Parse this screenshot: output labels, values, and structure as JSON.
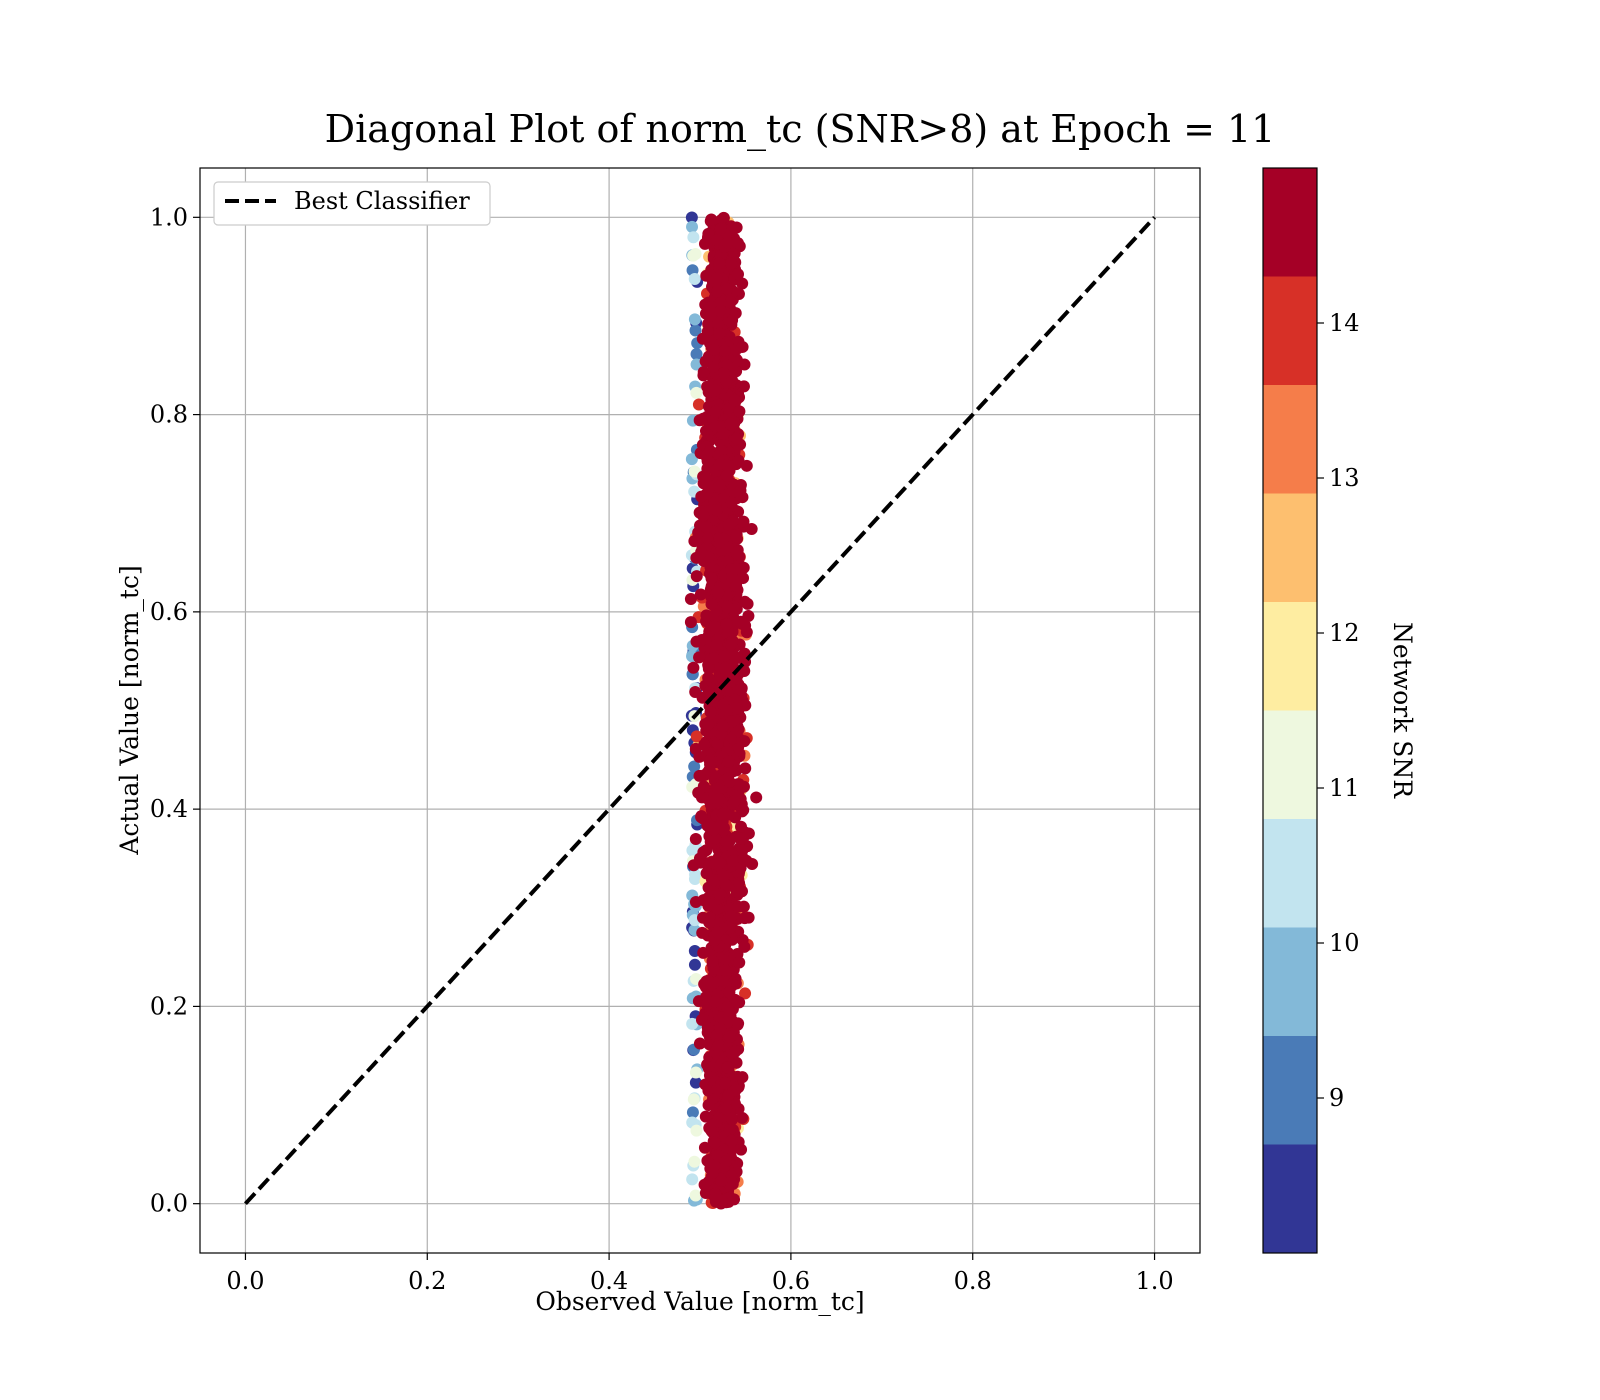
{
  "chart_data": {
    "type": "scatter",
    "title": "Diagonal Plot of norm_tc (SNR>8) at Epoch = 11",
    "xlabel": "Observed Value [norm_tc]",
    "ylabel": "Actual Value [norm_tc]",
    "xlim": [
      -0.05,
      1.05
    ],
    "ylim": [
      -0.05,
      1.05
    ],
    "xticks": [
      0.0,
      0.2,
      0.4,
      0.6,
      0.8,
      1.0
    ],
    "yticks": [
      0.0,
      0.2,
      0.4,
      0.6,
      0.8,
      1.0
    ],
    "xtick_labels": [
      "0.0",
      "0.2",
      "0.4",
      "0.6",
      "0.8",
      "1.0"
    ],
    "ytick_labels": [
      "0.0",
      "0.2",
      "0.4",
      "0.6",
      "0.8",
      "1.0"
    ],
    "grid": true,
    "legend": {
      "placement": "upper-left",
      "entries": [
        {
          "label": "Best Classifier",
          "style": "dashed",
          "color": "#000000"
        }
      ]
    },
    "reference_line": {
      "name": "Best Classifier",
      "x": [
        0.0,
        1.0
      ],
      "y": [
        0.0,
        1.0
      ],
      "style": "dashed",
      "color": "#000000"
    },
    "scatter_summary": {
      "description_of_cloud": "vertical band of points",
      "x_center": 0.525,
      "x_min": 0.49,
      "x_max": 0.59,
      "y_min": 0.0,
      "y_max": 1.0,
      "dominant_snr_range": [
        14.5,
        15.0
      ]
    },
    "colorbar": {
      "label": "Network SNR",
      "range": [
        8.0,
        15.0
      ],
      "ticks": [
        9,
        10,
        11,
        12,
        13,
        14
      ],
      "tick_labels": [
        "9",
        "10",
        "11",
        "12",
        "13",
        "14"
      ],
      "bins": [
        {
          "from": 8.0,
          "to": 8.7,
          "color": "#313695"
        },
        {
          "from": 8.7,
          "to": 9.4,
          "color": "#4a7bb7"
        },
        {
          "from": 9.4,
          "to": 10.1,
          "color": "#83b9d8"
        },
        {
          "from": 10.1,
          "to": 10.8,
          "color": "#c2e4ef"
        },
        {
          "from": 10.8,
          "to": 11.5,
          "color": "#eef8df"
        },
        {
          "from": 11.5,
          "to": 12.2,
          "color": "#feeda1"
        },
        {
          "from": 12.2,
          "to": 12.9,
          "color": "#fdbf6f"
        },
        {
          "from": 12.9,
          "to": 13.6,
          "color": "#f57d4a"
        },
        {
          "from": 13.6,
          "to": 14.3,
          "color": "#d73027"
        },
        {
          "from": 14.3,
          "to": 15.0,
          "color": "#a50026"
        }
      ]
    }
  }
}
